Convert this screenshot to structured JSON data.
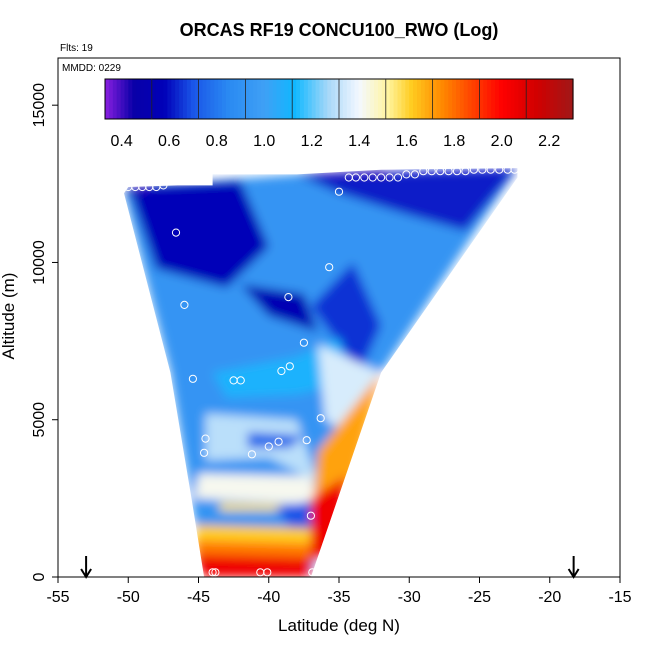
{
  "chart_data": {
    "type": "heatmap",
    "title": "ORCAS RF19 CONCU100_RWO (Log)",
    "annotations": {
      "flights": "Flts: 19",
      "date": "MMDD: 0229"
    },
    "xlabel": "Latitude (deg N)",
    "ylabel": "Altitude (m)",
    "xlim": [
      -55,
      -15
    ],
    "ylim": [
      0,
      16500
    ],
    "x_ticks": [
      -55,
      -50,
      -45,
      -40,
      -35,
      -30,
      -25,
      -20,
      -15
    ],
    "x_tick_labels": [
      "-55",
      "-50",
      "-45",
      "-40",
      "-35",
      "-30",
      "-25",
      "-20",
      "-15"
    ],
    "y_ticks": [
      0,
      5000,
      10000,
      15000
    ],
    "y_tick_labels": [
      "0",
      "5000",
      "10000",
      "15000"
    ],
    "colorbar": {
      "range": [
        0.33,
        2.3
      ],
      "ticks": [
        0.4,
        0.6,
        0.8,
        1.0,
        1.2,
        1.4,
        1.6,
        1.8,
        2.0,
        2.2
      ],
      "tick_labels": [
        "0.4",
        "0.6",
        "0.8",
        "1.0",
        "1.2",
        "1.4",
        "1.6",
        "1.8",
        "2.0",
        "2.2"
      ],
      "stops": [
        {
          "v": 0.33,
          "c": "#8a1fe0"
        },
        {
          "v": 0.45,
          "c": "#0a00a8"
        },
        {
          "v": 0.58,
          "c": "#0000b8"
        },
        {
          "v": 0.7,
          "c": "#1a55e8"
        },
        {
          "v": 0.85,
          "c": "#2a8af2"
        },
        {
          "v": 1.0,
          "c": "#3fa0f5"
        },
        {
          "v": 1.13,
          "c": "#10b8ff"
        },
        {
          "v": 1.27,
          "c": "#a8d8f8"
        },
        {
          "v": 1.4,
          "c": "#f4f8ff"
        },
        {
          "v": 1.52,
          "c": "#fff5a0"
        },
        {
          "v": 1.62,
          "c": "#ffcc20"
        },
        {
          "v": 1.75,
          "c": "#ff8800"
        },
        {
          "v": 1.88,
          "c": "#ff4000"
        },
        {
          "v": 2.0,
          "c": "#ff0000"
        },
        {
          "v": 2.15,
          "c": "#d00000"
        },
        {
          "v": 2.3,
          "c": "#a01818"
        }
      ]
    },
    "arrows_at_latitude": [
      -53,
      -18.3
    ],
    "domain_outline": [
      [
        -50,
        12400
      ],
      [
        -46.5,
        12450
      ],
      [
        -44,
        12450
      ],
      [
        -44,
        12800
      ],
      [
        -38,
        12800
      ],
      [
        -32,
        12950
      ],
      [
        -22.3,
        13000
      ],
      [
        -22.3,
        12700
      ],
      [
        -32,
        6500
      ],
      [
        -37,
        0
      ],
      [
        -44.6,
        0
      ],
      [
        -45.5,
        2500
      ],
      [
        -47,
        6500
      ],
      [
        -50.3,
        12200
      ]
    ],
    "field_regions": [
      {
        "shape": [
          [
            -50,
            12400
          ],
          [
            -38,
            12800
          ],
          [
            -22.3,
            13000
          ],
          [
            -32,
            6500
          ],
          [
            -37,
            0
          ],
          [
            -44.6,
            0
          ],
          [
            -47,
            6500
          ],
          [
            -50.3,
            12200
          ]
        ],
        "value": 0.92
      },
      {
        "shape": [
          [
            -50,
            12400
          ],
          [
            -42,
            12600
          ],
          [
            -40,
            10500
          ],
          [
            -43,
            9200
          ],
          [
            -48,
            9800
          ]
        ],
        "value": 0.58
      },
      {
        "shape": [
          [
            -38,
            12800
          ],
          [
            -22.3,
            13000
          ],
          [
            -26,
            11000
          ],
          [
            -30,
            11500
          ],
          [
            -35,
            12200
          ]
        ],
        "value": 0.62
      },
      {
        "shape": [
          [
            -38,
            12800
          ],
          [
            -32,
            12950
          ],
          [
            -31,
            12700
          ]
        ],
        "value": 0.42
      },
      {
        "shape": [
          [
            -42,
            9300
          ],
          [
            -37.5,
            9000
          ],
          [
            -36.5,
            7800
          ],
          [
            -40,
            8300
          ]
        ],
        "value": 0.55
      },
      {
        "shape": [
          [
            -37,
            8600
          ],
          [
            -34,
            10000
          ],
          [
            -32,
            8000
          ],
          [
            -33.5,
            6500
          ]
        ],
        "value": 0.65
      },
      {
        "shape": [
          [
            -44,
            6500
          ],
          [
            -38,
            7000
          ],
          [
            -35,
            7600
          ],
          [
            -34,
            6200
          ],
          [
            -38,
            5800
          ],
          [
            -43,
            5700
          ]
        ],
        "value": 1.1
      },
      {
        "shape": [
          [
            -36.5,
            7400
          ],
          [
            -32,
            6500
          ],
          [
            -34,
            4500
          ],
          [
            -36,
            5000
          ]
        ],
        "value": 1.35
      },
      {
        "shape": [
          [
            -44.5,
            5200
          ],
          [
            -38,
            5000
          ],
          [
            -36.5,
            3000
          ],
          [
            -40,
            3800
          ],
          [
            -44.5,
            3700
          ]
        ],
        "value": 1.3
      },
      {
        "shape": [
          [
            -41.5,
            4600
          ],
          [
            -37.5,
            4500
          ],
          [
            -38.5,
            4100
          ],
          [
            -41.5,
            4100
          ]
        ],
        "value": 0.75
      },
      {
        "shape": [
          [
            -45,
            3300
          ],
          [
            -37,
            3200
          ],
          [
            -36.5,
            2300
          ],
          [
            -45.3,
            2500
          ]
        ],
        "value": 1.42
      },
      {
        "shape": [
          [
            -43.5,
            2350
          ],
          [
            -39,
            2300
          ],
          [
            -38.6,
            2100
          ],
          [
            -43.5,
            2100
          ]
        ],
        "value": 1.56
      },
      {
        "shape": [
          [
            -39.5,
            2200
          ],
          [
            -36,
            2500
          ],
          [
            -35.2,
            1500
          ],
          [
            -38,
            1300
          ]
        ],
        "value": 0.7
      },
      {
        "shape": [
          [
            -45.1,
            1650
          ],
          [
            -37,
            1550
          ],
          [
            -36.8,
            900
          ],
          [
            -45.3,
            900
          ]
        ],
        "value": 1.62
      },
      {
        "shape": [
          [
            -45.3,
            1150
          ],
          [
            -37,
            1050
          ],
          [
            -37,
            0
          ],
          [
            -44.6,
            0
          ]
        ],
        "value": 1.78
      },
      {
        "shape": [
          [
            -45.3,
            700
          ],
          [
            -37,
            600
          ],
          [
            -37,
            0
          ],
          [
            -44.6,
            0
          ]
        ],
        "value": 2.05
      },
      {
        "shape": [
          [
            -36.5,
            4000
          ],
          [
            -32,
            6500
          ],
          [
            -34,
            3000
          ],
          [
            -37,
            1500
          ]
        ],
        "value": 1.7
      },
      {
        "shape": [
          [
            -37,
            2500
          ],
          [
            -34.5,
            3200
          ],
          [
            -35,
            900
          ],
          [
            -37,
            500
          ]
        ],
        "value": 2.05
      },
      {
        "shape": [
          [
            -50,
            12400
          ],
          [
            -50.3,
            12200
          ],
          [
            -49,
            12200
          ],
          [
            -48.5,
            12450
          ]
        ],
        "value": 0.42
      }
    ],
    "markers": [
      [
        -50,
        12400
      ],
      [
        -49.5,
        12400
      ],
      [
        -49,
        12400
      ],
      [
        -48.5,
        12400
      ],
      [
        -48,
        12400
      ],
      [
        -47.5,
        12450
      ],
      [
        -46.6,
        10950
      ],
      [
        -46,
        8650
      ],
      [
        -45.4,
        6300
      ],
      [
        -44.5,
        4400
      ],
      [
        -44.6,
        3950
      ],
      [
        -42.5,
        6250
      ],
      [
        -42,
        6250
      ],
      [
        -41.2,
        3900
      ],
      [
        -40,
        4150
      ],
      [
        -39.3,
        4300
      ],
      [
        -39.1,
        6550
      ],
      [
        -38.5,
        6700
      ],
      [
        -38.6,
        8900
      ],
      [
        -37.5,
        7450
      ],
      [
        -37.3,
        4350
      ],
      [
        -36.3,
        5050
      ],
      [
        -35.7,
        9850
      ],
      [
        -35,
        12250
      ],
      [
        -34.3,
        12700
      ],
      [
        -33.8,
        12700
      ],
      [
        -33.2,
        12700
      ],
      [
        -32.6,
        12700
      ],
      [
        -32,
        12700
      ],
      [
        -31.4,
        12700
      ],
      [
        -30.8,
        12700
      ],
      [
        -30.2,
        12800
      ],
      [
        -29.6,
        12800
      ],
      [
        -29,
        12900
      ],
      [
        -28.4,
        12900
      ],
      [
        -27.8,
        12900
      ],
      [
        -27.2,
        12900
      ],
      [
        -26.6,
        12900
      ],
      [
        -26,
        12900
      ],
      [
        -25.4,
        12950
      ],
      [
        -24.8,
        12950
      ],
      [
        -24.2,
        12950
      ],
      [
        -23.6,
        12950
      ],
      [
        -23,
        12950
      ],
      [
        -22.5,
        12950
      ],
      [
        -37,
        1950
      ],
      [
        -36.9,
        150
      ],
      [
        -40.1,
        150
      ],
      [
        -40.6,
        150
      ],
      [
        -43.8,
        150
      ],
      [
        -44,
        150
      ]
    ]
  }
}
